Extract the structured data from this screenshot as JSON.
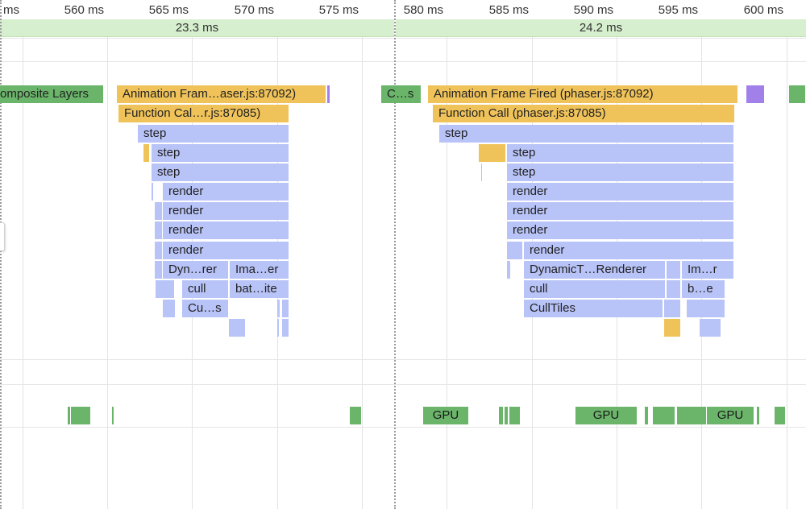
{
  "ruler": {
    "ticks": [
      "ms",
      "560 ms",
      "565 ms",
      "570 ms",
      "575 ms",
      "580 ms",
      "585 ms",
      "590 ms",
      "595 ms",
      "600 ms"
    ]
  },
  "frames": [
    {
      "label": "23.3 ms"
    },
    {
      "label": "24.2 ms"
    }
  ],
  "colors": {
    "scripting": "#f0c35a",
    "js_call": "#b8c3f7",
    "composite": "#6ab56a",
    "rendering": "#a280ea",
    "frame_bg": "#d6efce"
  },
  "flame": {
    "composite_layers": "omposite Layers",
    "c_s": "C…s",
    "left": {
      "anim_frame": "Animation Fram…aser.js:87092)",
      "func_call": "Function Cal…r.js:87085)",
      "step1": "step",
      "step2": "step",
      "step3": "step",
      "render1": "render",
      "render2": "render",
      "render3": "render",
      "render4": "render",
      "dyn": "Dyn…rer",
      "ima": "Ima…er",
      "cull": "cull",
      "bat": "bat…ite",
      "culls": "Cu…s"
    },
    "right": {
      "anim_frame": "Animation Frame Fired (phaser.js:87092)",
      "func_call": "Function Call (phaser.js:87085)",
      "step1": "step",
      "step2": "step",
      "step3": "step",
      "render1": "render",
      "render2": "render",
      "render3": "render",
      "render4": "render",
      "dyn": "DynamicT…Renderer",
      "im": "Im…r",
      "cull": "cull",
      "be": "b…e",
      "culltiles": "CullTiles"
    }
  },
  "gpu": {
    "label1": "GPU",
    "label2": "GPU",
    "label3": "GPU"
  }
}
